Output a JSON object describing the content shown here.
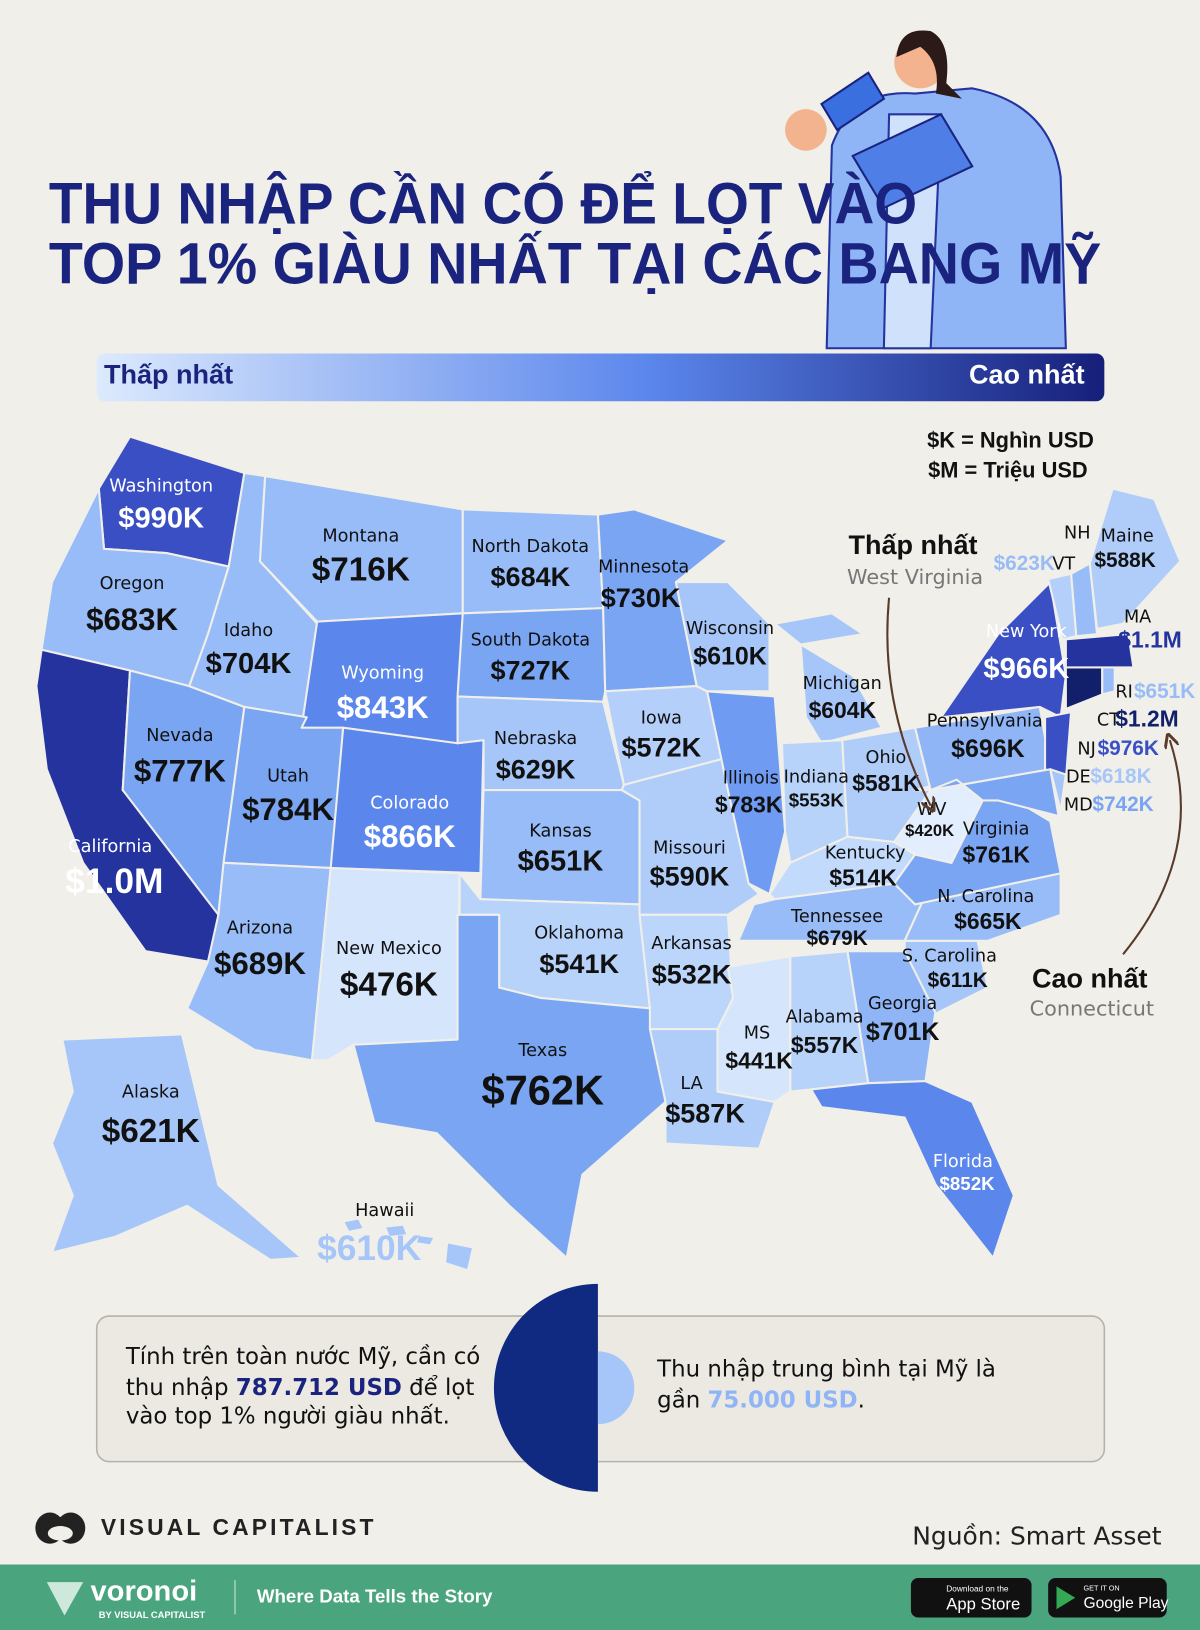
{
  "header": {
    "title_lines": [
      "THU NHẬP CẦN CÓ ĐỂ LỌT VÀO",
      "TOP 1% GIÀU NHẤT TẠI CÁC BANG MỸ"
    ]
  },
  "legend": {
    "low": "Thấp nhất",
    "high": "Cao nhất",
    "units": [
      "$K = Nghìn USD",
      "$M = Triệu USD"
    ]
  },
  "annotations": [
    {
      "title": "Thấp nhất",
      "state": "West Virginia"
    },
    {
      "title": "Cao nhất",
      "state": "Connecticut"
    }
  ],
  "states": [
    {
      "name": "Washington",
      "value": "$990K",
      "color": "#3a4fc4"
    },
    {
      "name": "Oregon",
      "value": "$683K",
      "color": "#98bcf7"
    },
    {
      "name": "California",
      "value": "$1.0M",
      "color": "#24339e"
    },
    {
      "name": "Nevada",
      "value": "$777K",
      "color": "#7aa5f3"
    },
    {
      "name": "Idaho",
      "value": "$704K",
      "color": "#98bcf7"
    },
    {
      "name": "Montana",
      "value": "$716K",
      "color": "#98bcf7"
    },
    {
      "name": "Wyoming",
      "value": "$843K",
      "color": "#5b86ec"
    },
    {
      "name": "Utah",
      "value": "$784K",
      "color": "#7aa5f3"
    },
    {
      "name": "Colorado",
      "value": "$866K",
      "color": "#5b86ec"
    },
    {
      "name": "Arizona",
      "value": "$689K",
      "color": "#98bcf7"
    },
    {
      "name": "New Mexico",
      "value": "$476K",
      "color": "#d5e6fc"
    },
    {
      "name": "North Dakota",
      "value": "$684K",
      "color": "#98bcf7"
    },
    {
      "name": "South Dakota",
      "value": "$727K",
      "color": "#7aa5f3"
    },
    {
      "name": "Nebraska",
      "value": "$629K",
      "color": "#a6c6f9"
    },
    {
      "name": "Kansas",
      "value": "$651K",
      "color": "#98bcf7"
    },
    {
      "name": "Oklahoma",
      "value": "$541K",
      "color": "#b8d3fa"
    },
    {
      "name": "Texas",
      "value": "$762K",
      "color": "#7aa5f3"
    },
    {
      "name": "Minnesota",
      "value": "$730K",
      "color": "#7aa5f3"
    },
    {
      "name": "Iowa",
      "value": "$572K",
      "color": "#b4d0fa"
    },
    {
      "name": "Missouri",
      "value": "$590K",
      "color": "#b0cdfa"
    },
    {
      "name": "Arkansas",
      "value": "$532K",
      "color": "#bcd6fb"
    },
    {
      "name": "LA",
      "value": "$587K",
      "color": "#b0cdfa"
    },
    {
      "name": "Wisconsin",
      "value": "$610K",
      "color": "#a6c6f9"
    },
    {
      "name": "Illinois",
      "value": "$783K",
      "color": "#6f9cf2"
    },
    {
      "name": "Michigan",
      "value": "$604K",
      "color": "#a6c6f9"
    },
    {
      "name": "Indiana",
      "value": "$553K",
      "color": "#b8d3fa"
    },
    {
      "name": "Ohio",
      "value": "$581K",
      "color": "#b0cdfa"
    },
    {
      "name": "Kentucky",
      "value": "$514K",
      "color": "#c2dafb"
    },
    {
      "name": "Tennessee",
      "value": "$679K",
      "color": "#98bcf7"
    },
    {
      "name": "MS",
      "value": "$441K",
      "color": "#d5e6fc"
    },
    {
      "name": "Alabama",
      "value": "$557K",
      "color": "#b8d3fa"
    },
    {
      "name": "Georgia",
      "value": "$701K",
      "color": "#8fb5f6"
    },
    {
      "name": "Florida",
      "value": "$852K",
      "color": "#5b86ec"
    },
    {
      "name": "S. Carolina",
      "value": "$611K",
      "color": "#a6c6f9"
    },
    {
      "name": "N. Carolina",
      "value": "$665K",
      "color": "#98bcf7"
    },
    {
      "name": "Virginia",
      "value": "$761K",
      "color": "#7aa5f3"
    },
    {
      "name": "WV",
      "value": "$420K",
      "color": "#e2eefd"
    },
    {
      "name": "Pennsylvania",
      "value": "$696K",
      "color": "#8fb5f6"
    },
    {
      "name": "New York",
      "value": "$966K",
      "color": "#3a4fc4"
    },
    {
      "name": "NJ",
      "value": "$976K",
      "color": "#3a4fc4"
    },
    {
      "name": "DE",
      "value": "$618K",
      "color": "#a6c6f9"
    },
    {
      "name": "MD",
      "value": "$742K",
      "color": "#7aa5f3"
    },
    {
      "name": "CT",
      "value": "$1.2M",
      "color": "#121f6b"
    },
    {
      "name": "RI",
      "value": "$651K",
      "color": "#98bcf7"
    },
    {
      "name": "MA",
      "value": "$1.1M",
      "color": "#24339e"
    },
    {
      "name": "NH",
      "value": "$623K",
      "color": "#98bcf7"
    },
    {
      "name": "VT",
      "color": "#b4d0fa"
    },
    {
      "name": "Maine",
      "value": "$588K",
      "color": "#b0cdfa"
    },
    {
      "name": "Alaska",
      "value": "$621K",
      "color": "#a6c6f9"
    },
    {
      "name": "Hawaii",
      "value": "$610K",
      "color": "#a6c6f9"
    }
  ],
  "summary": {
    "left": [
      "Tính trên toàn nước Mỹ, cần có",
      "thu nhập ",
      "787.712 USD",
      " để lọt",
      "vào top 1% người giàu nhất."
    ],
    "right": [
      "Thu nhập trung bình tại Mỹ là",
      "gần ",
      "75.000 USD",
      "."
    ]
  },
  "footer": {
    "brand": "VISUAL CAPITALIST",
    "source": "Nguồn: Smart Asset",
    "voronoi": "voronoi",
    "voronoi_by": "BY VISUAL CAPITALIST",
    "tagline": "Where Data Tells the Story",
    "app_store": [
      "Download on the",
      "App Store"
    ],
    "google_play": [
      "GET IT ON",
      "Google Play"
    ]
  }
}
